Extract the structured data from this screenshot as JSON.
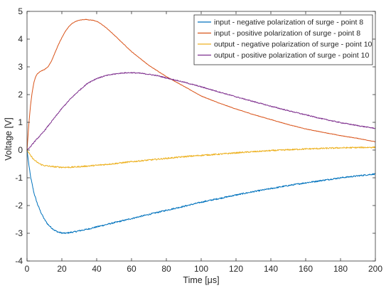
{
  "chart_data": {
    "type": "line",
    "title": "",
    "xlabel": "Time [μs]",
    "ylabel": "Voltage [V]",
    "xlim": [
      0,
      200
    ],
    "ylim": [
      -4,
      5
    ],
    "xticks": [
      0,
      20,
      40,
      60,
      80,
      100,
      120,
      140,
      160,
      180,
      200
    ],
    "yticks": [
      -4,
      -3,
      -2,
      -1,
      0,
      1,
      2,
      3,
      4,
      5
    ],
    "grid": false,
    "legend_position": "top-right",
    "series": [
      {
        "name": "input - negative polarization of surge - point 8",
        "color": "#0072BD",
        "x": [
          0,
          1,
          2,
          4,
          6,
          8,
          10,
          12,
          14,
          16,
          18,
          20,
          22,
          24,
          26,
          28,
          30,
          35,
          40,
          50,
          60,
          70,
          80,
          90,
          100,
          110,
          120,
          130,
          140,
          150,
          160,
          170,
          180,
          190,
          200
        ],
        "y": [
          0,
          -0.5,
          -0.95,
          -1.55,
          -1.95,
          -2.25,
          -2.5,
          -2.68,
          -2.8,
          -2.9,
          -2.96,
          -2.99,
          -3.0,
          -2.98,
          -2.96,
          -2.94,
          -2.91,
          -2.85,
          -2.77,
          -2.62,
          -2.47,
          -2.32,
          -2.17,
          -2.03,
          -1.88,
          -1.75,
          -1.62,
          -1.5,
          -1.39,
          -1.28,
          -1.18,
          -1.09,
          -1.0,
          -0.93,
          -0.86
        ]
      },
      {
        "name": "input - positive polarization of surge - point 8",
        "color": "#D95319",
        "x": [
          0,
          1,
          2,
          3,
          4,
          5,
          6,
          8,
          10,
          12,
          14,
          16,
          18,
          20,
          22,
          24,
          26,
          28,
          30,
          32,
          34,
          36,
          38,
          40,
          42,
          44,
          46,
          50,
          55,
          60,
          65,
          70,
          80,
          90,
          100,
          110,
          120,
          130,
          140,
          150,
          160,
          170,
          180,
          190,
          200
        ],
        "y": [
          0,
          0.9,
          1.6,
          2.1,
          2.45,
          2.65,
          2.75,
          2.85,
          2.9,
          3.0,
          3.2,
          3.5,
          3.8,
          4.05,
          4.28,
          4.45,
          4.57,
          4.64,
          4.68,
          4.7,
          4.71,
          4.69,
          4.68,
          4.64,
          4.57,
          4.48,
          4.38,
          4.15,
          3.85,
          3.55,
          3.3,
          3.05,
          2.65,
          2.3,
          1.95,
          1.7,
          1.48,
          1.28,
          1.1,
          0.92,
          0.76,
          0.64,
          0.52,
          0.42,
          0.3
        ]
      },
      {
        "name": "output - negative polarization of surge - point 10",
        "color": "#EDB120",
        "x": [
          0,
          2,
          4,
          6,
          8,
          10,
          15,
          20,
          25,
          30,
          40,
          50,
          60,
          70,
          80,
          90,
          100,
          110,
          120,
          130,
          140,
          150,
          160,
          170,
          180,
          190,
          200
        ],
        "y": [
          0,
          -0.2,
          -0.35,
          -0.45,
          -0.52,
          -0.56,
          -0.6,
          -0.62,
          -0.62,
          -0.6,
          -0.55,
          -0.49,
          -0.42,
          -0.36,
          -0.3,
          -0.24,
          -0.19,
          -0.15,
          -0.1,
          -0.06,
          -0.02,
          0.01,
          0.04,
          0.06,
          0.08,
          0.09,
          0.1
        ]
      },
      {
        "name": "output - positive polarization of surge - point 10",
        "color": "#7E2F8E",
        "x": [
          0,
          2,
          4,
          6,
          8,
          10,
          15,
          20,
          25,
          30,
          35,
          40,
          45,
          50,
          55,
          60,
          65,
          70,
          75,
          80,
          90,
          100,
          110,
          120,
          130,
          140,
          150,
          160,
          170,
          180,
          190,
          200
        ],
        "y": [
          0,
          0.12,
          0.28,
          0.42,
          0.55,
          0.7,
          1.1,
          1.5,
          1.85,
          2.15,
          2.42,
          2.58,
          2.68,
          2.74,
          2.78,
          2.79,
          2.77,
          2.73,
          2.68,
          2.6,
          2.45,
          2.28,
          2.1,
          1.92,
          1.75,
          1.58,
          1.42,
          1.27,
          1.12,
          0.99,
          0.88,
          0.78
        ]
      }
    ]
  }
}
